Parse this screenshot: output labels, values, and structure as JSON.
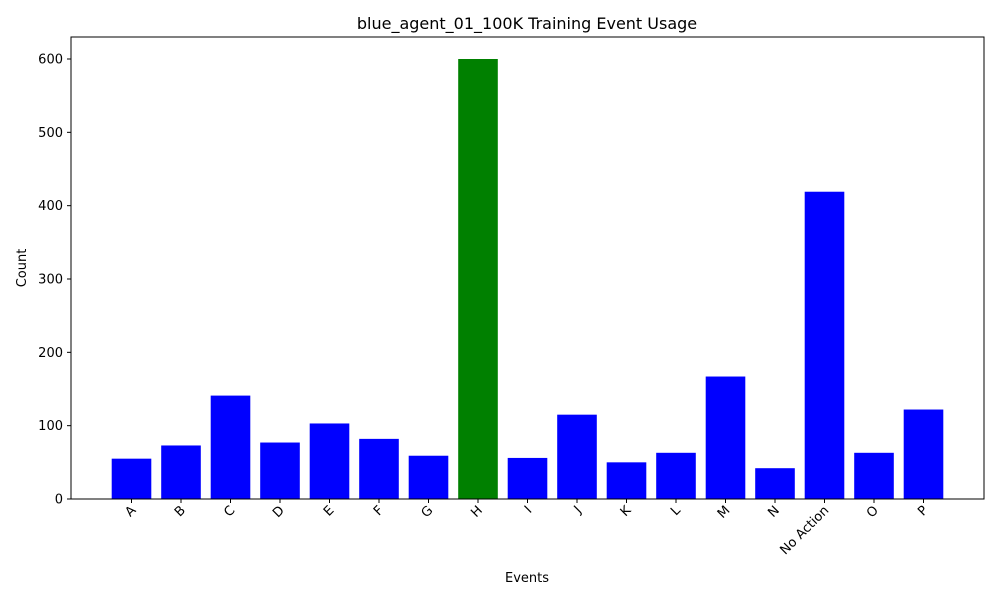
{
  "chart_data": {
    "type": "bar",
    "title": "blue_agent_01_100K Training Event Usage",
    "xlabel": "Events",
    "ylabel": "Count",
    "categories": [
      "A",
      "B",
      "C",
      "D",
      "E",
      "F",
      "G",
      "H",
      "I",
      "J",
      "K",
      "L",
      "M",
      "N",
      "No Action",
      "O",
      "P"
    ],
    "values": [
      55,
      73,
      141,
      77,
      103,
      82,
      59,
      600,
      56,
      115,
      50,
      63,
      167,
      42,
      419,
      63,
      122
    ],
    "colors": [
      "#0000ff",
      "#0000ff",
      "#0000ff",
      "#0000ff",
      "#0000ff",
      "#0000ff",
      "#0000ff",
      "#008000",
      "#0000ff",
      "#0000ff",
      "#0000ff",
      "#0000ff",
      "#0000ff",
      "#0000ff",
      "#0000ff",
      "#0000ff",
      "#0000ff"
    ],
    "ylim": [
      0,
      630
    ],
    "yticks": [
      0,
      100,
      200,
      300,
      400,
      500,
      600
    ],
    "grid": false,
    "xtick_rotation": 45
  }
}
